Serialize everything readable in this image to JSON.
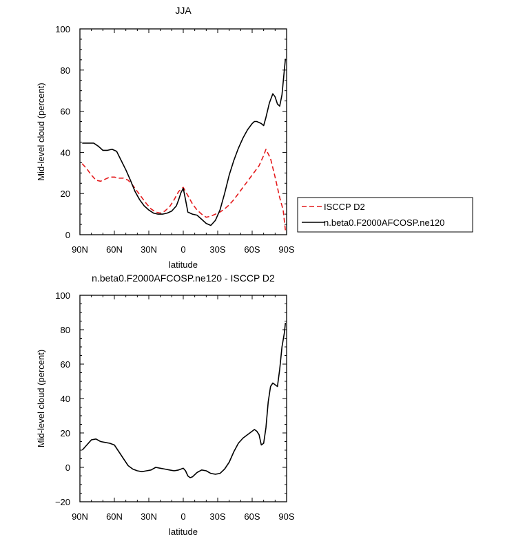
{
  "colors": {
    "model": "#000000",
    "observation": "#e41a1c",
    "frame": "#000000"
  },
  "legend": {
    "entries": [
      {
        "label": "ISCCP D2",
        "color": "#e41a1c",
        "dash": true
      },
      {
        "label": "n.beta0.F2000AFCOSP.ne120",
        "color": "#000000",
        "dash": false
      }
    ],
    "placement": "right of top panel"
  },
  "chart_data": [
    {
      "type": "line",
      "title": "JJA",
      "xlabel": "latitude",
      "ylabel": "Mid-level cloud (percent)",
      "xlim": [
        90,
        -90
      ],
      "ylim": [
        0,
        100
      ],
      "xticks": [
        90,
        60,
        30,
        0,
        -30,
        -60,
        -90
      ],
      "xtick_labels": [
        "90N",
        "60N",
        "30N",
        "0",
        "30S",
        "60S",
        "90S"
      ],
      "yticks": [
        0,
        20,
        40,
        60,
        80,
        100
      ],
      "ytick_labels": [
        "0",
        "20",
        "40",
        "60",
        "80",
        "100"
      ],
      "grid": false,
      "series": [
        {
          "name": "ISCCP D2",
          "color": "#e41a1c",
          "dash": true,
          "x": [
            88,
            84,
            80,
            76,
            72,
            68,
            64,
            60,
            56,
            52,
            48,
            44,
            40,
            36,
            32,
            28,
            24,
            20,
            16,
            12,
            8,
            4,
            0,
            -4,
            -8,
            -12,
            -16,
            -20,
            -24,
            -28,
            -32,
            -36,
            -40,
            -44,
            -48,
            -52,
            -56,
            -60,
            -64,
            -66,
            -68,
            -70,
            -72,
            -76,
            -80,
            -84,
            -87,
            -89
          ],
          "values": [
            34.5,
            32,
            29,
            26.5,
            26,
            27,
            28,
            28,
            27.5,
            27.5,
            26.5,
            24,
            21,
            18,
            15,
            12.5,
            11,
            10.5,
            11.5,
            13.5,
            17,
            21,
            23,
            19,
            15,
            12,
            10,
            8.5,
            9,
            10,
            11,
            12.5,
            14.5,
            17,
            20,
            23,
            26,
            29,
            32,
            33.5,
            36,
            38.5,
            41.5,
            37,
            28,
            18,
            12,
            2
          ]
        },
        {
          "name": "n.beta0.F2000AFCOSP.ne120",
          "color": "#000000",
          "dash": false,
          "x": [
            88,
            84,
            80,
            78,
            74,
            70,
            66,
            62,
            58,
            54,
            50,
            46,
            42,
            38,
            34,
            30,
            26,
            22,
            18,
            14,
            10,
            6,
            4,
            2,
            0,
            -2,
            -4,
            -8,
            -12,
            -16,
            -20,
            -24,
            -28,
            -32,
            -36,
            -40,
            -44,
            -48,
            -52,
            -56,
            -60,
            -62,
            -64,
            -66,
            -68,
            -70,
            -72,
            -75,
            -78,
            -80,
            -82,
            -84,
            -86,
            -88,
            -89
          ],
          "values": [
            44.5,
            44.5,
            44.5,
            44.5,
            43,
            41,
            41,
            41.5,
            40.5,
            36,
            31.5,
            26.5,
            21,
            17,
            14,
            12,
            10.5,
            10,
            10,
            10.5,
            11.5,
            14,
            17,
            20.5,
            22.5,
            17,
            11,
            10,
            9.5,
            7.5,
            5.5,
            4.5,
            7,
            12,
            20,
            29,
            36,
            42,
            47,
            51,
            54,
            55,
            55,
            54.5,
            54,
            53,
            57,
            64,
            68.5,
            67,
            63.5,
            62.5,
            68,
            80,
            85.5
          ]
        }
      ]
    },
    {
      "type": "line",
      "title": "n.beta0.F2000AFCOSP.ne120 - ISCCP D2",
      "xlabel": "latitude",
      "ylabel": "Mid-level cloud (percent)",
      "xlim": [
        90,
        -90
      ],
      "ylim": [
        -20,
        100
      ],
      "xticks": [
        90,
        60,
        30,
        0,
        -30,
        -60,
        -90
      ],
      "xtick_labels": [
        "90N",
        "60N",
        "30N",
        "0",
        "30S",
        "60S",
        "90S"
      ],
      "yticks": [
        -20,
        0,
        20,
        40,
        60,
        80,
        100
      ],
      "ytick_labels": [
        "−20",
        "0",
        "20",
        "40",
        "60",
        "80",
        "100"
      ],
      "grid": false,
      "series": [
        {
          "color": "#000000",
          "dash": false,
          "x": [
            88,
            84,
            80,
            76,
            72,
            68,
            64,
            60,
            56,
            52,
            48,
            44,
            40,
            36,
            32,
            28,
            24,
            20,
            16,
            12,
            8,
            4,
            2,
            0,
            -2,
            -4,
            -6,
            -8,
            -12,
            -16,
            -20,
            -24,
            -28,
            -32,
            -36,
            -40,
            -44,
            -48,
            -52,
            -56,
            -58,
            -60,
            -62,
            -64,
            -66,
            -68,
            -70,
            -72,
            -74,
            -76,
            -78,
            -80,
            -82,
            -84,
            -86,
            -88,
            -89
          ],
          "values": [
            10,
            13,
            16,
            16.5,
            15,
            14.5,
            14,
            13,
            9,
            5,
            1,
            -1,
            -2,
            -2.5,
            -2,
            -1.5,
            0,
            -0.5,
            -1,
            -1.5,
            -2,
            -1.5,
            -1,
            -0.5,
            -2,
            -5,
            -6,
            -5.5,
            -3,
            -1.5,
            -2,
            -3.5,
            -4,
            -3.5,
            -1,
            3,
            9,
            14,
            17,
            19,
            20,
            21,
            22,
            21,
            19,
            13,
            14,
            23,
            38,
            47,
            49,
            48,
            47,
            57,
            70,
            78,
            84
          ]
        }
      ]
    }
  ]
}
